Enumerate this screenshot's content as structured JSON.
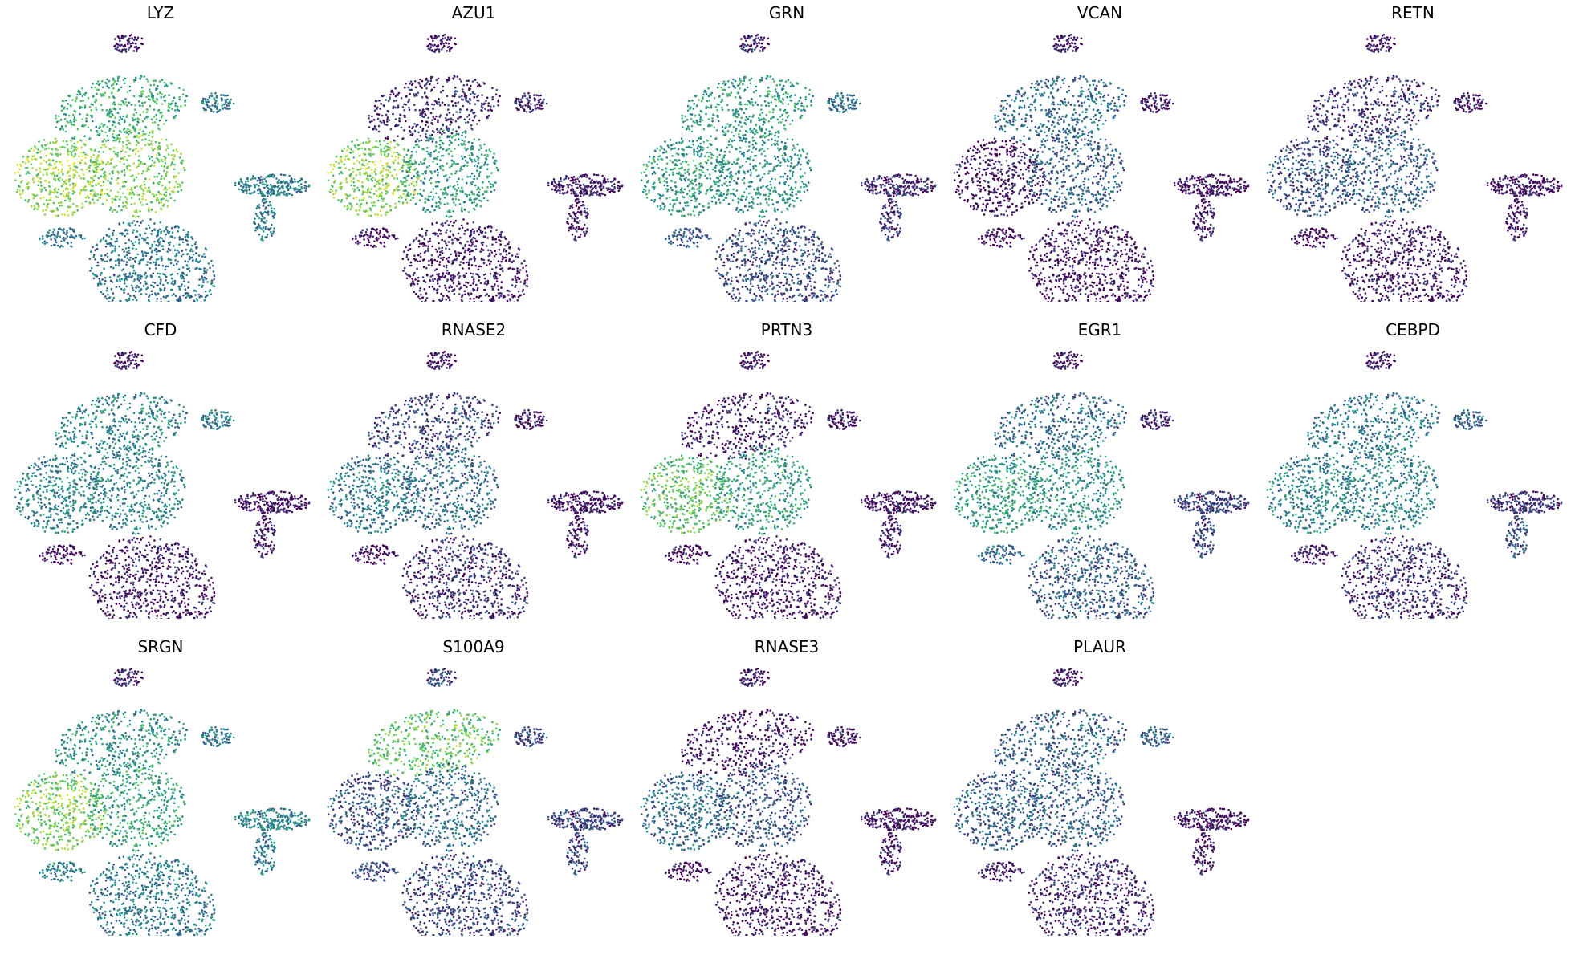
{
  "chart_data": {
    "type": "scatter",
    "embedding": "UMAP",
    "colormap": "viridis",
    "colormap_stops": [
      "#440154",
      "#3b528b",
      "#21918c",
      "#5ec962",
      "#fde725"
    ],
    "axes_visible": false,
    "grid": false,
    "legend": "none",
    "layout": {
      "rows": 3,
      "cols": 5
    },
    "clusters": [
      "top-small",
      "upper-arm",
      "right-tip",
      "left-body",
      "center-body",
      "lower-body",
      "left-tail",
      "right-island",
      "right-tail"
    ],
    "panels": [
      {
        "title": "LYZ",
        "cluster_expression": [
          0.05,
          0.62,
          0.4,
          0.82,
          0.78,
          0.38,
          0.4,
          0.42,
          0.4
        ]
      },
      {
        "title": "AZU1",
        "cluster_expression": [
          0.05,
          0.12,
          0.1,
          0.8,
          0.55,
          0.05,
          0.05,
          0.08,
          0.05
        ]
      },
      {
        "title": "GRN",
        "cluster_expression": [
          0.1,
          0.55,
          0.35,
          0.55,
          0.5,
          0.22,
          0.3,
          0.12,
          0.15
        ]
      },
      {
        "title": "VCAN",
        "cluster_expression": [
          0.05,
          0.35,
          0.05,
          0.05,
          0.3,
          0.03,
          0.05,
          0.05,
          0.05
        ]
      },
      {
        "title": "RETN",
        "cluster_expression": [
          0.05,
          0.15,
          0.05,
          0.25,
          0.3,
          0.05,
          0.05,
          0.05,
          0.05
        ]
      },
      {
        "title": "CFD",
        "cluster_expression": [
          0.05,
          0.45,
          0.4,
          0.45,
          0.45,
          0.05,
          0.05,
          0.05,
          0.05
        ]
      },
      {
        "title": "RNASE2",
        "cluster_expression": [
          0.05,
          0.2,
          0.05,
          0.4,
          0.35,
          0.12,
          0.05,
          0.05,
          0.05
        ]
      },
      {
        "title": "PRTN3",
        "cluster_expression": [
          0.05,
          0.08,
          0.05,
          0.72,
          0.55,
          0.05,
          0.05,
          0.05,
          0.05
        ]
      },
      {
        "title": "EGR1",
        "cluster_expression": [
          0.05,
          0.35,
          0.1,
          0.55,
          0.5,
          0.28,
          0.35,
          0.2,
          0.2
        ]
      },
      {
        "title": "CEBPD",
        "cluster_expression": [
          0.05,
          0.4,
          0.3,
          0.45,
          0.45,
          0.12,
          0.1,
          0.15,
          0.25
        ]
      },
      {
        "title": "SRGN",
        "cluster_expression": [
          0.1,
          0.5,
          0.4,
          0.78,
          0.58,
          0.4,
          0.45,
          0.45,
          0.4
        ]
      },
      {
        "title": "S100A9",
        "cluster_expression": [
          0.2,
          0.72,
          0.2,
          0.25,
          0.35,
          0.2,
          0.25,
          0.2,
          0.2
        ]
      },
      {
        "title": "RNASE3",
        "cluster_expression": [
          0.05,
          0.05,
          0.05,
          0.35,
          0.25,
          0.05,
          0.05,
          0.05,
          0.05
        ]
      },
      {
        "title": "PLAUR",
        "cluster_expression": [
          0.05,
          0.3,
          0.3,
          0.3,
          0.3,
          0.1,
          0.1,
          0.05,
          0.05
        ]
      }
    ]
  }
}
